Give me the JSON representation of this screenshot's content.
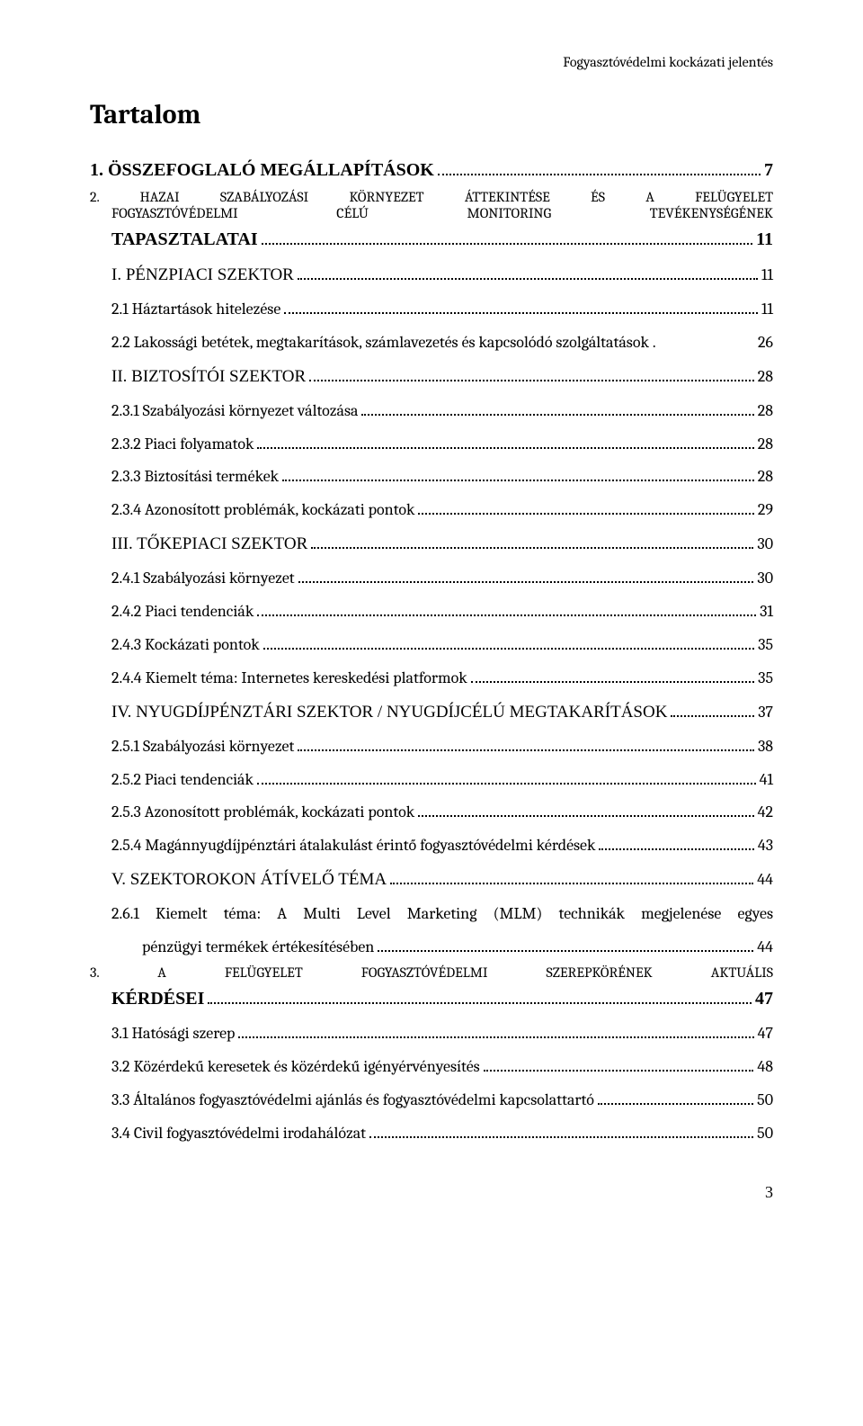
{
  "header": "Fogyasztóvédelmi kockázati jelentés",
  "title": "Tartalom",
  "page_number": "3",
  "colors": {
    "text": "#000000",
    "background": "#ffffff",
    "dots": "#000000"
  },
  "typography": {
    "body_font": "Cambria, Georgia, serif",
    "heading_font": "Times New Roman, serif",
    "title_size_pt": 22,
    "entry_size_pt": 14,
    "line_height": 2.05
  },
  "toc": [
    {
      "level": 0,
      "label": "1.  ÖSSZEFOGLALÓ MEGÁLLAPÍTÁSOK",
      "page": "7"
    },
    {
      "level": 0,
      "multiline": true,
      "line1": "2.  HAZAI SZABÁLYOZÁSI KÖRNYEZET ÁTTEKINTÉSE ÉS A FELÜGYELET",
      "line2_label": "FOGYASZTÓVÉDELMI   CÉLÚ   MONITORING   TEVÉKENYSÉGÉNEK",
      "line3_label": "TAPASZTALATAI",
      "page": "11"
    },
    {
      "level": 1,
      "label": "I.  PÉNZPIACI SZEKTOR",
      "page": "11"
    },
    {
      "level": 2,
      "label": "2.1  Háztartások hitelezése",
      "page": "11"
    },
    {
      "level": 2,
      "label": "2.2 Lakossági betétek, megtakarítások, számlavezetés és kapcsolódó szolgáltatások .",
      "page": "26",
      "nodots": true
    },
    {
      "level": 1,
      "label": "II.  BIZTOSÍTÓI SZEKTOR",
      "page": "28"
    },
    {
      "level": 2,
      "label": "2.3.1  Szabályozási környezet változása",
      "page": "28"
    },
    {
      "level": 2,
      "label": "2.3.2  Piaci folyamatok",
      "page": "28"
    },
    {
      "level": 2,
      "label": "2.3.3  Biztosítási termékek",
      "page": "28"
    },
    {
      "level": 2,
      "label": "2.3.4  Azonosított problémák, kockázati pontok",
      "page": "29"
    },
    {
      "level": 1,
      "label": "III.  TŐKEPIACI SZEKTOR",
      "page": "30"
    },
    {
      "level": 2,
      "label": "2.4.1  Szabályozási környezet",
      "page": "30"
    },
    {
      "level": 2,
      "label": "2.4.2  Piaci tendenciák",
      "page": "31"
    },
    {
      "level": 2,
      "label": "2.4.3  Kockázati pontok",
      "page": "35"
    },
    {
      "level": 2,
      "label": "2.4.4  Kiemelt téma: Internetes kereskedési platformok",
      "page": "35"
    },
    {
      "level": 1,
      "label": "IV.  NYUGDÍJPÉNZTÁRI SZEKTOR / NYUGDÍJCÉLÚ MEGTAKARÍTÁSOK",
      "page": "37"
    },
    {
      "level": 2,
      "label": "2.5.1  Szabályozási környezet",
      "page": "38"
    },
    {
      "level": 2,
      "label": "2.5.2  Piaci tendenciák",
      "page": "41"
    },
    {
      "level": 2,
      "label": "2.5.3  Azonosított problémák, kockázati pontok",
      "page": "42"
    },
    {
      "level": 2,
      "label": "2.5.4  Magánnyugdíjpénztári átalakulást érintő fogyasztóvédelmi kérdések",
      "page": "43"
    },
    {
      "level": 1,
      "label": "V.  SZEKTOROKON ÁTÍVELŐ TÉMA",
      "page": "44"
    },
    {
      "level": 2,
      "multiline": true,
      "line1": "2.6.1  Kiemelt  téma:  A  Multi  Level  Marketing  (MLM)  technikák  megjelenése  egyes",
      "line2_label": "pénzügyi termékek értékesítésében",
      "page": "44",
      "l2style": true,
      "indentSub": true
    },
    {
      "level": 0,
      "multiline": true,
      "line1": "3.   A   FELÜGYELET   FOGYASZTÓVÉDELMI   SZEREPKÖRÉNEK   AKTUÁLIS",
      "line2_label": "KÉRDÉSEI",
      "page": "47"
    },
    {
      "level": 2,
      "label": "3.1  Hatósági szerep",
      "page": "47"
    },
    {
      "level": 2,
      "label": "3.2  Közérdekű keresetek és közérdekű igényérvényesítés",
      "page": "48"
    },
    {
      "level": 2,
      "label": "3.3  Általános fogyasztóvédelmi ajánlás és fogyasztóvédelmi kapcsolattartó",
      "page": "50"
    },
    {
      "level": 2,
      "label": "3.4  Civil fogyasztóvédelmi irodahálózat",
      "page": "50"
    }
  ]
}
